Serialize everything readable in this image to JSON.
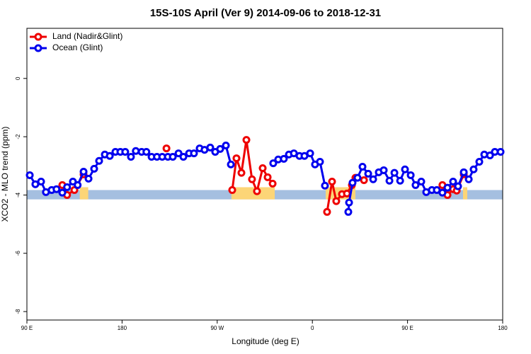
{
  "chart_data": {
    "type": "line",
    "title": "15S-10S April (Ver 9)   2014-09-06 to 2018-12-31",
    "x_label": "Longitude (deg E)",
    "y_label": "XCO2 - MLO trend (ppm)",
    "xlim": [
      90,
      540
    ],
    "ylim": [
      -8.29,
      1.72
    ],
    "xticks": [
      {
        "value": 90,
        "label": "90 E"
      },
      180,
      {
        "value": 270,
        "label": "90 W"
      },
      {
        "value": 360,
        "label": "0"
      },
      {
        "value": 450,
        "label": "90 E"
      },
      {
        "value": 540,
        "label": "180"
      }
    ],
    "yticks": [
      0,
      -2,
      -4,
      -6,
      -8
    ],
    "legend": "top-left",
    "band": {
      "values": [
        -4.15,
        -3.83
      ],
      "color": "#a5bfe0"
    },
    "land_regions": {
      "color": "#fcd577",
      "x": [
        [
          140,
          148
        ],
        [
          283.5,
          324.4
        ],
        [
          372.6,
          400.7
        ],
        [
          502.5,
          506.5
        ]
      ]
    },
    "series": [
      {
        "name": "Land (Nadir&Glint)",
        "color": "#ee0000",
        "x": [
          123.5,
          128,
          134.9,
          143.6,
          null,
          222,
          null,
          284.2,
          288.2,
          292.9,
          297.6,
          302.9,
          307.6,
          313,
          317.7,
          322.4,
          null,
          373.9,
          378.6,
          382.6,
          388,
          392.7,
          397.4,
          400.7,
          null,
          408.8,
          null,
          483,
          487.8,
          493.1,
          496.5,
          503.2
        ],
        "values": [
          -3.66,
          -4.0,
          -3.83,
          -3.29,
          null,
          -2.4,
          null,
          -3.83,
          -2.74,
          -3.24,
          -2.11,
          -3.46,
          -3.87,
          -3.08,
          -3.39,
          -3.61,
          null,
          -4.58,
          -3.54,
          -4.21,
          -3.97,
          -3.95,
          -3.66,
          -3.41,
          null,
          -3.49,
          null,
          -3.66,
          -4.0,
          -3.8,
          -3.85,
          -3.29
        ]
      },
      {
        "name": "Ocean (Glint)",
        "color": "#0000ee",
        "x": [
          92.7,
          98,
          103.4,
          108,
          113.4,
          118,
          123.5,
          128,
          133.5,
          138,
          143.6,
          148.3,
          153.6,
          158.3,
          163.7,
          168.4,
          173.7,
          178.4,
          183,
          188.4,
          193,
          198.5,
          203,
          207.9,
          213,
          218,
          223.3,
          228,
          233.4,
          238,
          243.4,
          248,
          253.4,
          258,
          263.4,
          268.1,
          272.8,
          278.2,
          282.9,
          null,
          323,
          327.7,
          333,
          337.8,
          342.5,
          347.8,
          352.5,
          357.9,
          362.5,
          367.2,
          371.9,
          null,
          394,
          394.7,
          398,
          402.7,
          407.4,
          412.8,
          417.5,
          422.8,
          427.5,
          432.9,
          437.6,
          443,
          447.6,
          453,
          457.6,
          463,
          467.7,
          473,
          477.7,
          483,
          487.8,
          493.1,
          497.8,
          503.2,
          507.9,
          512.5,
          517.9,
          522.6,
          528,
          532.6,
          538
        ],
        "values": [
          -3.32,
          -3.63,
          -3.54,
          -3.9,
          -3.83,
          -3.8,
          -3.92,
          -3.73,
          -3.54,
          -3.66,
          -3.2,
          -3.44,
          -3.1,
          -2.83,
          -2.61,
          -2.66,
          -2.52,
          -2.52,
          -2.52,
          -2.69,
          -2.49,
          -2.52,
          -2.52,
          -2.69,
          -2.69,
          -2.69,
          -2.69,
          -2.69,
          -2.57,
          -2.69,
          -2.57,
          -2.57,
          -2.4,
          -2.45,
          -2.37,
          -2.52,
          -2.42,
          -2.3,
          -2.95,
          null,
          -2.91,
          -2.78,
          -2.76,
          -2.61,
          -2.57,
          -2.66,
          -2.66,
          -2.57,
          -2.95,
          -2.86,
          -3.68,
          null,
          -4.58,
          -4.26,
          -3.58,
          -3.41,
          -3.03,
          -3.27,
          -3.46,
          -3.22,
          -3.15,
          -3.51,
          -3.24,
          -3.51,
          -3.12,
          -3.32,
          -3.66,
          -3.54,
          -3.9,
          -3.83,
          -3.83,
          -3.92,
          -3.75,
          -3.54,
          -3.7,
          -3.22,
          -3.46,
          -3.12,
          -2.86,
          -2.61,
          -2.64,
          -2.52,
          -2.52
        ]
      }
    ]
  }
}
